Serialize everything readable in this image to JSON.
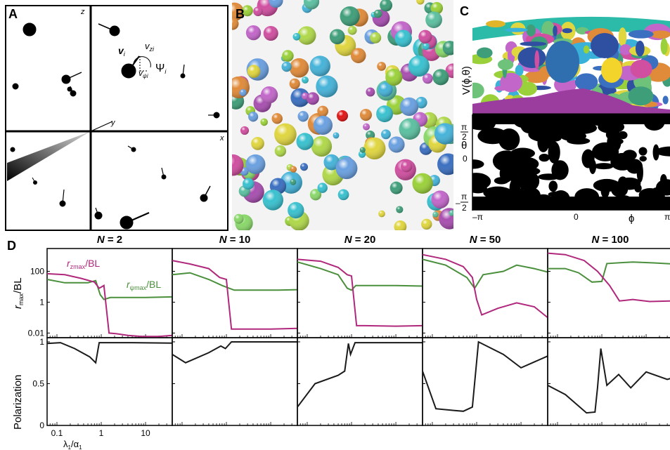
{
  "panel_labels": {
    "a": "A",
    "b": "B",
    "c": "C",
    "d": "D"
  },
  "panel_a": {
    "axis_x": "x",
    "axis_y": "y",
    "axis_z": "z",
    "label_v": "v",
    "label_v_sub": "i",
    "label_vz": "v",
    "label_vz_sub": "zi",
    "label_psi": "Ψ",
    "label_psi_sub": "i",
    "label_vpsi": "v",
    "label_vpsi_sub": "ψi"
  },
  "panel_c": {
    "ylabel_top": "V(ϕ,θ)",
    "theta_label": "θ",
    "theta_top_num": "π",
    "theta_top_den": "2",
    "theta_mid": "0",
    "theta_bot_sign": "–",
    "theta_bot_num": "π",
    "theta_bot_den": "2",
    "phi_left": "–π",
    "phi_mid": "0",
    "phi_right": "π",
    "phi_label": "ϕ"
  },
  "colors": {
    "magenta": "#b0287c",
    "green": "#4a8f3c",
    "black": "#1a1a1a"
  },
  "chart_data": {
    "type": "line",
    "x_scale": "log",
    "x_ticks": [
      "0.1",
      "1",
      "10"
    ],
    "xlabel_main": "λ",
    "xlabel_sub": "1",
    "xlabel_sep": "/α",
    "xlabel_sub2": "1",
    "top_ylabel_r": "r",
    "top_ylabel_sub": "max",
    "top_ylabel_rest": "/BL",
    "top_y_ticks": [
      "100",
      "1",
      "0.01"
    ],
    "bot_ylabel": "Polarization",
    "bot_y_ticks": [
      "1",
      "0.5",
      "0"
    ],
    "legend_z_r": "r",
    "legend_z_sub": "zmax",
    "legend_z_rest": "/BL",
    "legend_psi_r": "r",
    "legend_psi_sub": "ψmax",
    "legend_psi_rest": "/BL",
    "top_ylim": [
      0.005,
      3000
    ],
    "bot_ylim": [
      0,
      1.05
    ],
    "panels": [
      {
        "title_n": "N",
        "title_eq": " = 2",
        "rz": [
          [
            0.06,
            70
          ],
          [
            0.15,
            60
          ],
          [
            0.35,
            35
          ],
          [
            0.7,
            20
          ],
          [
            0.9,
            8
          ],
          [
            1.15,
            12
          ],
          [
            1.5,
            0.01
          ],
          [
            2.2,
            0.009
          ],
          [
            4,
            0.007
          ],
          [
            8,
            0.006
          ],
          [
            20,
            0.006
          ],
          [
            40,
            0.007
          ]
        ],
        "rpsi": [
          [
            0.06,
            30
          ],
          [
            0.15,
            18
          ],
          [
            0.3,
            18
          ],
          [
            0.5,
            18
          ],
          [
            0.75,
            25
          ],
          [
            0.95,
            3
          ],
          [
            1.15,
            1.5
          ],
          [
            1.6,
            2
          ],
          [
            4,
            2
          ],
          [
            10,
            2
          ],
          [
            40,
            2.2
          ]
        ],
        "pol": [
          [
            0.06,
            0.98
          ],
          [
            0.12,
            0.99
          ],
          [
            0.25,
            0.92
          ],
          [
            0.55,
            0.82
          ],
          [
            0.75,
            0.75
          ],
          [
            0.9,
            0.99
          ],
          [
            1.2,
            0.99
          ],
          [
            5,
            0.99
          ],
          [
            40,
            0.985
          ]
        ]
      },
      {
        "title_n": "N",
        "title_eq": " = 10",
        "rz": [
          [
            0.06,
            500
          ],
          [
            0.15,
            300
          ],
          [
            0.4,
            150
          ],
          [
            0.7,
            40
          ],
          [
            1.0,
            30
          ],
          [
            1.3,
            0.018
          ],
          [
            2,
            0.018
          ],
          [
            10,
            0.018
          ],
          [
            40,
            0.02
          ]
        ],
        "rpsi": [
          [
            0.06,
            60
          ],
          [
            0.15,
            80
          ],
          [
            0.4,
            30
          ],
          [
            0.8,
            12
          ],
          [
            1.5,
            6
          ],
          [
            5,
            6
          ],
          [
            15,
            6
          ],
          [
            40,
            6.5
          ]
        ],
        "pol": [
          [
            0.06,
            0.85
          ],
          [
            0.12,
            0.75
          ],
          [
            0.4,
            0.87
          ],
          [
            0.75,
            0.95
          ],
          [
            0.95,
            0.92
          ],
          [
            1.3,
            1.0
          ],
          [
            5,
            1.0
          ],
          [
            40,
            1.0
          ]
        ]
      },
      {
        "title_n": "N",
        "title_eq": " = 20",
        "rz": [
          [
            0.06,
            600
          ],
          [
            0.2,
            450
          ],
          [
            0.5,
            180
          ],
          [
            0.8,
            60
          ],
          [
            1.0,
            50
          ],
          [
            1.3,
            0.03
          ],
          [
            2,
            0.03
          ],
          [
            10,
            0.028
          ],
          [
            40,
            0.03
          ]
        ],
        "rpsi": [
          [
            0.06,
            400
          ],
          [
            0.2,
            150
          ],
          [
            0.5,
            60
          ],
          [
            0.8,
            8
          ],
          [
            1,
            6
          ],
          [
            1.25,
            12
          ],
          [
            2,
            12
          ],
          [
            10,
            12
          ],
          [
            40,
            11
          ]
        ],
        "pol": [
          [
            0.06,
            0.22
          ],
          [
            0.15,
            0.5
          ],
          [
            0.5,
            0.6
          ],
          [
            0.7,
            0.65
          ],
          [
            0.85,
            0.98
          ],
          [
            0.95,
            0.85
          ],
          [
            1.2,
            0.99
          ],
          [
            5,
            0.99
          ],
          [
            40,
            0.99
          ]
        ]
      },
      {
        "title_n": "N",
        "title_eq": " = 50",
        "rz": [
          [
            0.06,
            1200
          ],
          [
            0.2,
            600
          ],
          [
            0.5,
            200
          ],
          [
            0.8,
            40
          ],
          [
            1.0,
            1.5
          ],
          [
            1.3,
            0.15
          ],
          [
            3,
            0.4
          ],
          [
            8,
            0.9
          ],
          [
            20,
            0.5
          ],
          [
            40,
            0.1
          ]
        ],
        "rpsi": [
          [
            0.06,
            600
          ],
          [
            0.2,
            250
          ],
          [
            0.6,
            40
          ],
          [
            0.9,
            8
          ],
          [
            1.4,
            60
          ],
          [
            4,
            100
          ],
          [
            8,
            250
          ],
          [
            20,
            150
          ],
          [
            40,
            90
          ]
        ],
        "pol": [
          [
            0.06,
            0.65
          ],
          [
            0.12,
            0.2
          ],
          [
            0.3,
            0.18
          ],
          [
            0.5,
            0.17
          ],
          [
            0.8,
            0.22
          ],
          [
            1.1,
            1.0
          ],
          [
            4,
            0.85
          ],
          [
            10,
            0.69
          ],
          [
            40,
            0.83
          ]
        ]
      },
      {
        "title_n": "N",
        "title_eq": " = 100",
        "rz": [
          [
            0.06,
            1500
          ],
          [
            0.15,
            1200
          ],
          [
            0.4,
            500
          ],
          [
            0.8,
            100
          ],
          [
            1.5,
            12
          ],
          [
            2.5,
            1.2
          ],
          [
            5,
            1.5
          ],
          [
            12,
            1.1
          ],
          [
            40,
            1.2
          ]
        ],
        "rpsi": [
          [
            0.06,
            150
          ],
          [
            0.15,
            150
          ],
          [
            0.3,
            80
          ],
          [
            0.6,
            20
          ],
          [
            1.0,
            22
          ],
          [
            1.3,
            320
          ],
          [
            5,
            400
          ],
          [
            15,
            350
          ],
          [
            40,
            300
          ]
        ],
        "pol": [
          [
            0.06,
            0.48
          ],
          [
            0.15,
            0.37
          ],
          [
            0.45,
            0.15
          ],
          [
            0.7,
            0.16
          ],
          [
            0.8,
            0.45
          ],
          [
            0.95,
            0.92
          ],
          [
            1.3,
            0.48
          ],
          [
            2.4,
            0.61
          ],
          [
            4.5,
            0.45
          ],
          [
            10,
            0.64
          ],
          [
            30,
            0.55
          ],
          [
            40,
            0.57
          ]
        ]
      }
    ]
  }
}
